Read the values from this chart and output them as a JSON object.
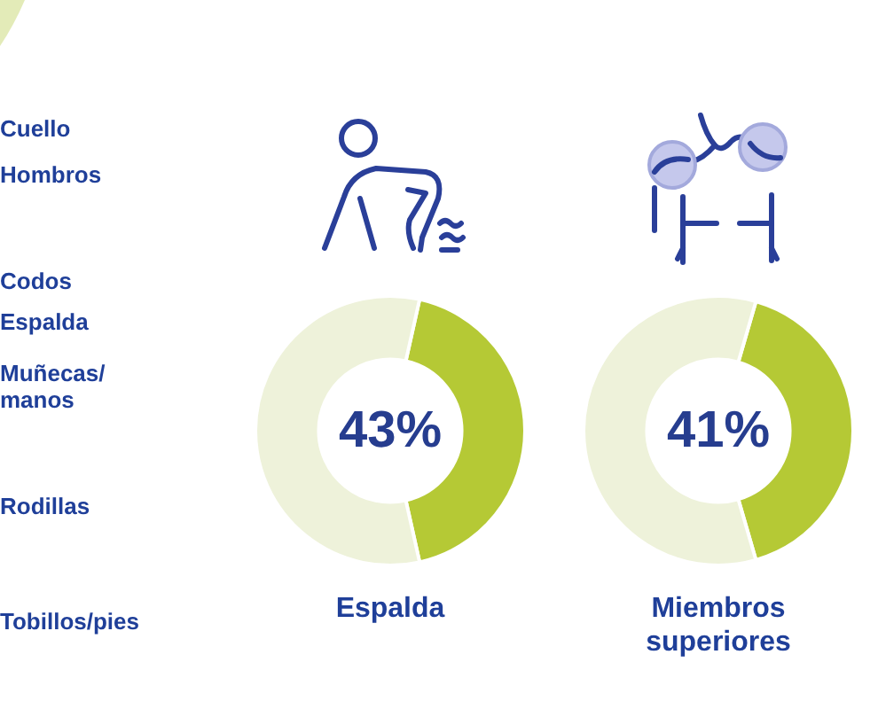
{
  "chart_data": [
    {
      "type": "other",
      "annotations": [
        "Cuello",
        "Hombros",
        "Codos",
        "Espalda",
        "Muñecas/\nmanos",
        "Rodillas",
        "Tobillos/pies"
      ]
    },
    {
      "type": "donut",
      "title": "Espalda",
      "categories": [
        null,
        null
      ],
      "values": [
        43,
        57
      ],
      "colors": [
        "#b5c935",
        "#eef2da"
      ],
      "value_labels": [
        "43%",
        null
      ]
    },
    {
      "type": "donut",
      "title": "Miembros superiores",
      "categories": [
        null,
        null
      ],
      "values": [
        41,
        59
      ],
      "colors": [
        "#b5c935",
        "#eef2da"
      ],
      "value_labels": [
        "41%",
        null
      ]
    }
  ]
}
